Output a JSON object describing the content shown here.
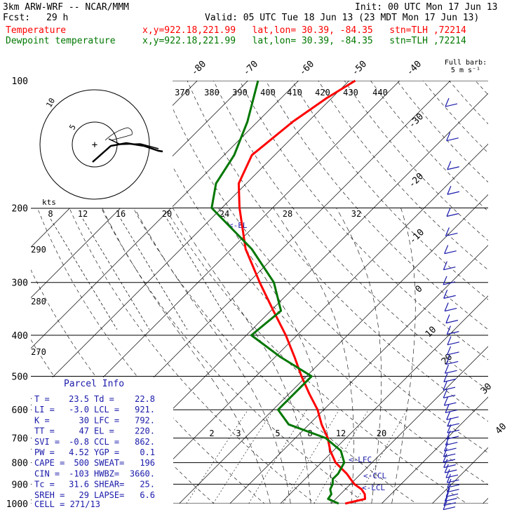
{
  "header": {
    "model": "3km ARW-WRF -- NCAR/MMM",
    "init": "Init: 00 UTC Mon 17 Jun 13",
    "fcst_label": "Fcst:",
    "fcst_value": "29 h",
    "valid": "Valid: 05 UTC Tue 18 Jun 13 (23 MDT Mon 17 Jun 13)",
    "temperature_label": "Temperature",
    "dewpoint_label": "Dewpoint temperature",
    "location": "x,y=922.18,221.99   lat,lon= 30.39, -84.35   stn=TLH ,72214"
  },
  "colors": {
    "temperature": "#ff0000",
    "dewpoint": "#007700",
    "labels": "#1a1aaa",
    "grid": "#000000",
    "wind": "#1a1aaa"
  },
  "chart_data": {
    "type": "line",
    "subtype": "skew-T log-P sounding",
    "pressure_levels": [
      "100",
      "200",
      "300",
      "400",
      "500",
      "600",
      "700",
      "800",
      "900",
      "1000"
    ],
    "isotherm_labels": [
      "-80",
      "-70",
      "-60",
      "-50",
      "-40",
      "-30",
      "-20",
      "-10",
      "0",
      "10",
      "20",
      "30",
      "40"
    ],
    "theta_labels": [
      "370",
      "380",
      "390",
      "400",
      "410",
      "420",
      "430",
      "440"
    ],
    "mixing_ratio_labels": [
      "2",
      "3",
      "5",
      "8",
      "12",
      "20"
    ],
    "hodo_speed_labels": [
      "8",
      "12",
      "16",
      "20",
      "24",
      "28",
      "32"
    ],
    "hodo_left_labels": [
      "290",
      "280",
      "270"
    ],
    "hodo_unit": "kts",
    "hodo_ring_labels": [
      "5",
      "10"
    ],
    "barb_header": [
      "Full barb:",
      "5 m s⁻¹"
    ],
    "level_markers": [
      "<-EL",
      "<-LFC",
      "<-CCL",
      "<-LCL"
    ],
    "temperature": {
      "name": "Temperature",
      "p": [
        1000,
        975,
        950,
        925,
        900,
        875,
        850,
        800,
        750,
        700,
        650,
        600,
        550,
        500,
        450,
        400,
        350,
        300,
        250,
        200,
        175,
        150,
        125,
        110,
        100
      ],
      "t": [
        22.8,
        25.8,
        24.8,
        23.2,
        20.8,
        19,
        17.2,
        12.8,
        9.4,
        6.4,
        2.5,
        -1.2,
        -6,
        -11,
        -16.2,
        -22.2,
        -29.5,
        -37.8,
        -47.2,
        -56.5,
        -61.5,
        -64.5,
        -63,
        -61,
        -58.8
      ]
    },
    "dewpoint": {
      "name": "Dewpoint temperature",
      "p": [
        1000,
        975,
        950,
        925,
        900,
        875,
        850,
        800,
        750,
        700,
        650,
        600,
        550,
        500,
        450,
        400,
        350,
        300,
        250,
        200,
        175,
        150,
        125,
        100
      ],
      "td": [
        21.5,
        18.5,
        18.2,
        17,
        16.5,
        15.5,
        15.5,
        14.5,
        11.5,
        6,
        -4,
        -9,
        -9,
        -9,
        -19,
        -29,
        -28,
        -35,
        -46,
        -62,
        -66,
        -68,
        -72,
        -78
      ]
    }
  },
  "parcel_info": {
    "title": "Parcel Info",
    "rows": [
      [
        "T  =",
        "23.5",
        "Td =",
        "22.8"
      ],
      [
        "LI =",
        "-3.0",
        "LCL =",
        "921."
      ],
      [
        "K  =",
        "30",
        "LFC =",
        "792."
      ],
      [
        "TT =",
        "47",
        "EL =",
        "220."
      ],
      [
        "SVI =",
        "-0.8",
        "CCL =",
        "862."
      ],
      [
        "PW =",
        "4.52",
        "YGP =",
        "0.1"
      ],
      [
        "CAPE =",
        "500",
        "SWEAT=",
        "196"
      ],
      [
        "CIN =",
        "-103",
        "HWBZ=",
        "3660."
      ],
      [
        "Tc =",
        "31.6",
        "SHEAR=",
        "25."
      ],
      [
        "SREH =",
        "29",
        "LAPSE=",
        "6.6"
      ]
    ],
    "cell": "CELL = 271/13"
  }
}
